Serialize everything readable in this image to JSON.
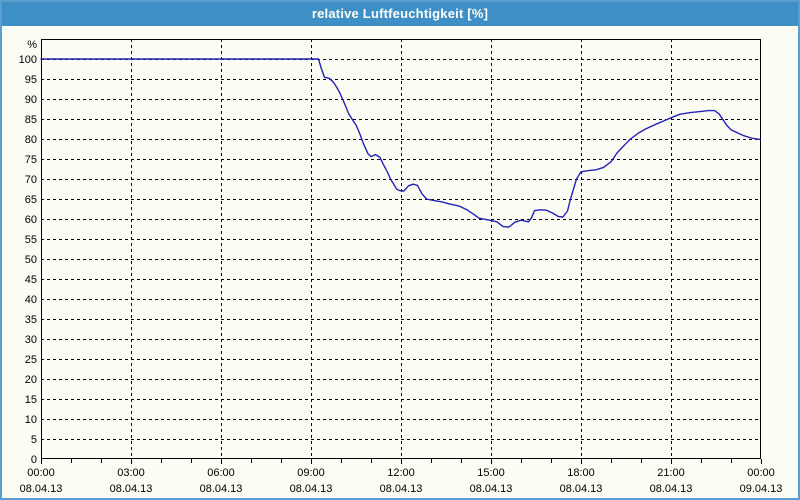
{
  "title": "relative Luftfeuchtigkeit [%]",
  "colors": {
    "titlebar_bg": "#3d8fc5",
    "frame": "#5b9fd1",
    "background": "#fcfdf5",
    "grid": "#000000",
    "axis": "#000000",
    "line": "#2424b4",
    "title_text": "#ffffff",
    "label_text": "#000000"
  },
  "chart_data": {
    "type": "line",
    "title": "relative Luftfeuchtigkeit [%]",
    "xlabel": "",
    "ylabel": "%",
    "ylim": [
      0,
      105
    ],
    "ytick_min": 0,
    "ytick_max": 100,
    "ytick_step": 5,
    "xlim_hours": [
      0,
      24
    ],
    "x_major_step_hours": 3,
    "x_minor_step_hours": 1,
    "grid": true,
    "grid_style": "dashed",
    "legend_position": "none",
    "x_ticks": [
      {
        "time": "00:00",
        "date": "08.04.13"
      },
      {
        "time": "03:00",
        "date": "08.04.13"
      },
      {
        "time": "06:00",
        "date": "08.04.13"
      },
      {
        "time": "09:00",
        "date": "08.04.13"
      },
      {
        "time": "12:00",
        "date": "08.04.13"
      },
      {
        "time": "15:00",
        "date": "08.04.13"
      },
      {
        "time": "18:00",
        "date": "08.04.13"
      },
      {
        "time": "21:00",
        "date": "08.04.13"
      },
      {
        "time": "00:00",
        "date": "09.04.13"
      }
    ],
    "series": [
      {
        "name": "relative Luftfeuchtigkeit",
        "points": [
          [
            0,
            100
          ],
          [
            0.5,
            100
          ],
          [
            1,
            100
          ],
          [
            1.5,
            100
          ],
          [
            2,
            100
          ],
          [
            2.5,
            100
          ],
          [
            3,
            100
          ],
          [
            3.5,
            100
          ],
          [
            4,
            100
          ],
          [
            4.5,
            100
          ],
          [
            5,
            100
          ],
          [
            5.5,
            100
          ],
          [
            6,
            100
          ],
          [
            6.5,
            100
          ],
          [
            7,
            100
          ],
          [
            7.5,
            100
          ],
          [
            8,
            100
          ],
          [
            8.5,
            100
          ],
          [
            9,
            100
          ],
          [
            9.25,
            100
          ],
          [
            9.35,
            97.5
          ],
          [
            9.45,
            95.4
          ],
          [
            9.6,
            95.2
          ],
          [
            9.75,
            94.2
          ],
          [
            9.85,
            93
          ],
          [
            9.95,
            91.7
          ],
          [
            10.05,
            90
          ],
          [
            10.15,
            88.3
          ],
          [
            10.25,
            86.4
          ],
          [
            10.4,
            84.6
          ],
          [
            10.5,
            83.5
          ],
          [
            10.6,
            81.8
          ],
          [
            10.75,
            78.8
          ],
          [
            10.9,
            76.3
          ],
          [
            11.0,
            75.6
          ],
          [
            11.15,
            76.1
          ],
          [
            11.3,
            75.4
          ],
          [
            11.4,
            73.8
          ],
          [
            11.55,
            71.7
          ],
          [
            11.65,
            70
          ],
          [
            11.75,
            68.8
          ],
          [
            11.85,
            67.5
          ],
          [
            11.95,
            67.1
          ],
          [
            12.1,
            67
          ],
          [
            12.25,
            68.3
          ],
          [
            12.4,
            68.7
          ],
          [
            12.55,
            68.4
          ],
          [
            12.7,
            66.3
          ],
          [
            12.85,
            65
          ],
          [
            13.1,
            64.6
          ],
          [
            13.35,
            64.3
          ],
          [
            13.6,
            63.8
          ],
          [
            13.95,
            63.2
          ],
          [
            14.2,
            62.3
          ],
          [
            14.4,
            61.3
          ],
          [
            14.6,
            60.2
          ],
          [
            14.95,
            59.7
          ],
          [
            15.2,
            59.3
          ],
          [
            15.4,
            58.1
          ],
          [
            15.6,
            58
          ],
          [
            15.8,
            59.2
          ],
          [
            16.0,
            59.7
          ],
          [
            16.25,
            59.3
          ],
          [
            16.35,
            60.3
          ],
          [
            16.45,
            62.1
          ],
          [
            16.65,
            62.3
          ],
          [
            16.85,
            62.2
          ],
          [
            17.05,
            61.5
          ],
          [
            17.25,
            60.6
          ],
          [
            17.4,
            60.5
          ],
          [
            17.55,
            62
          ],
          [
            17.65,
            65
          ],
          [
            17.75,
            67.5
          ],
          [
            17.85,
            70
          ],
          [
            18.0,
            71.8
          ],
          [
            18.25,
            72.1
          ],
          [
            18.5,
            72.3
          ],
          [
            18.75,
            72.9
          ],
          [
            19.0,
            74.3
          ],
          [
            19.2,
            76.5
          ],
          [
            19.45,
            78.5
          ],
          [
            19.65,
            80
          ],
          [
            19.9,
            81.4
          ],
          [
            20.15,
            82.5
          ],
          [
            20.5,
            83.7
          ],
          [
            20.75,
            84.5
          ],
          [
            21.0,
            85.3
          ],
          [
            21.3,
            86.2
          ],
          [
            21.65,
            86.6
          ],
          [
            22.0,
            86.9
          ],
          [
            22.25,
            87.1
          ],
          [
            22.45,
            87.1
          ],
          [
            22.6,
            86.3
          ],
          [
            22.7,
            85.2
          ],
          [
            22.85,
            83.5
          ],
          [
            23.0,
            82.3
          ],
          [
            23.2,
            81.6
          ],
          [
            23.4,
            80.9
          ],
          [
            23.65,
            80.3
          ],
          [
            23.85,
            80
          ],
          [
            23.97,
            79.9
          ]
        ]
      }
    ]
  }
}
